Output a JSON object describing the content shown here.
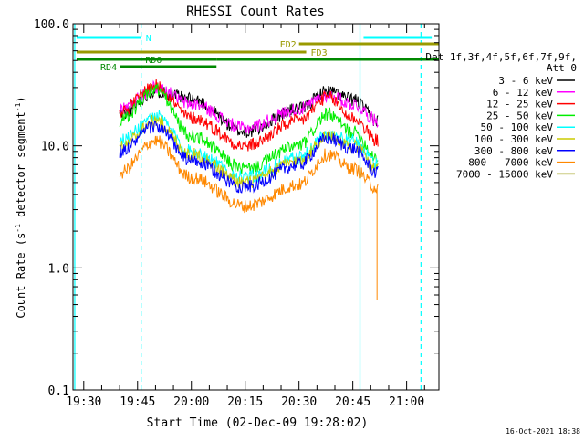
{
  "chart_data": {
    "type": "line",
    "title": "RHESSI Count Rates",
    "xlabel": "Start Time (02-Dec-09 19:28:02)",
    "ylabel_main": "Count Rate (s",
    "ylabel_sup1": "-1",
    "ylabel_mid": " detector segment",
    "ylabel_sup2": "-1",
    "ylabel_end": ")",
    "yscale": "log",
    "ylim": [
      0.1,
      100
    ],
    "xlim": [
      "19:27",
      "21:09"
    ],
    "x_ticks": [
      "19:30",
      "19:45",
      "20:00",
      "20:15",
      "20:30",
      "20:45",
      "21:00"
    ],
    "y_ticks": [
      "0.1",
      "1.0",
      "10.0",
      "100.0"
    ],
    "timestamp": "16-Oct-2021 18:38",
    "legend_header": [
      "Det 1f,3f,4f,5f,6f,7f,9f,",
      "Att 0"
    ],
    "series": [
      {
        "name": "3 - 6 keV",
        "color": "#000000",
        "x": [
          "19:40",
          "19:50",
          "20:00",
          "20:15",
          "20:30",
          "20:38",
          "20:45",
          "20:52"
        ],
        "y": [
          18,
          28,
          24,
          13,
          20,
          28,
          24,
          16
        ]
      },
      {
        "name": "6 - 12 keV",
        "color": "#ff00ff",
        "x": [
          "19:40",
          "19:50",
          "20:00",
          "20:15",
          "20:30",
          "20:38",
          "20:45",
          "20:52"
        ],
        "y": [
          20,
          30,
          22,
          14,
          20,
          26,
          22,
          16
        ]
      },
      {
        "name": "12 - 25 keV",
        "color": "#ff0000",
        "x": [
          "19:40",
          "19:50",
          "20:00",
          "20:15",
          "20:30",
          "20:38",
          "20:45",
          "20:52"
        ],
        "y": [
          19,
          31,
          17,
          10,
          16,
          25,
          17,
          11
        ]
      },
      {
        "name": "25 - 50 keV",
        "color": "#00ee00",
        "x": [
          "19:40",
          "19:50",
          "20:00",
          "20:15",
          "20:30",
          "20:38",
          "20:45",
          "20:52"
        ],
        "y": [
          16,
          29,
          12,
          6.5,
          10,
          18,
          13,
          8
        ]
      },
      {
        "name": "50 - 100 keV",
        "color": "#00ffff",
        "x": [
          "19:40",
          "19:50",
          "20:00",
          "20:15",
          "20:30",
          "20:38",
          "20:45",
          "20:52"
        ],
        "y": [
          11,
          17.5,
          9,
          5.5,
          8,
          12.5,
          11,
          7
        ]
      },
      {
        "name": "100 - 300 keV",
        "color": "#cccc00",
        "x": [
          "19:40",
          "19:50",
          "20:00",
          "20:15",
          "20:30",
          "20:38",
          "20:45",
          "20:52"
        ],
        "y": [
          10,
          16,
          8.5,
          5,
          7.5,
          12,
          10,
          6.5
        ]
      },
      {
        "name": "300 - 800 keV",
        "color": "#0000ff",
        "x": [
          "19:40",
          "19:50",
          "20:00",
          "20:15",
          "20:30",
          "20:38",
          "20:45",
          "20:52"
        ],
        "y": [
          9,
          14.5,
          7.5,
          4.6,
          7,
          11.5,
          9.5,
          6
        ]
      },
      {
        "name": "800 - 7000 keV",
        "color": "#ff8800",
        "x": [
          "19:40",
          "19:50",
          "20:00",
          "20:15",
          "20:30",
          "20:38",
          "20:45",
          "20:52"
        ],
        "y": [
          6,
          11,
          5.5,
          3.2,
          4.8,
          8.5,
          6.5,
          4.5
        ]
      },
      {
        "name": "7000 - 15000 keV",
        "color": "#999900",
        "x": [],
        "y": []
      }
    ],
    "annotation_bars": [
      {
        "label": "N",
        "color": "#00ffff",
        "start": "19:28",
        "end": "19:46",
        "level": 1
      },
      {
        "label": "",
        "color": "#00ffff",
        "start": "20:48",
        "end": "21:07",
        "level": 1
      },
      {
        "label": "FD2",
        "color": "#999900",
        "start": "20:30",
        "end": "21:09",
        "level": 2
      },
      {
        "label": "FD3",
        "color": "#999900",
        "start": "19:28",
        "end": "20:32",
        "level": 3
      },
      {
        "label": "RD0",
        "color": "#008800",
        "start": "19:28",
        "end": "20:07",
        "level": 4
      },
      {
        "label": "",
        "color": "#008800",
        "start": "20:07",
        "end": "21:09",
        "level": 4
      },
      {
        "label": "RD4",
        "color": "#008800",
        "start": "19:40",
        "end": "20:07",
        "level": 5
      }
    ],
    "vertical_markers": [
      {
        "time": "19:27:30",
        "color": "#00ffff",
        "style": "solid"
      },
      {
        "time": "19:46",
        "color": "#00ffff",
        "style": "dashed"
      },
      {
        "time": "20:47",
        "color": "#00ffff",
        "style": "solid"
      },
      {
        "time": "21:04",
        "color": "#00ffff",
        "style": "dashed"
      }
    ],
    "grid": false,
    "legend_position": "right"
  }
}
